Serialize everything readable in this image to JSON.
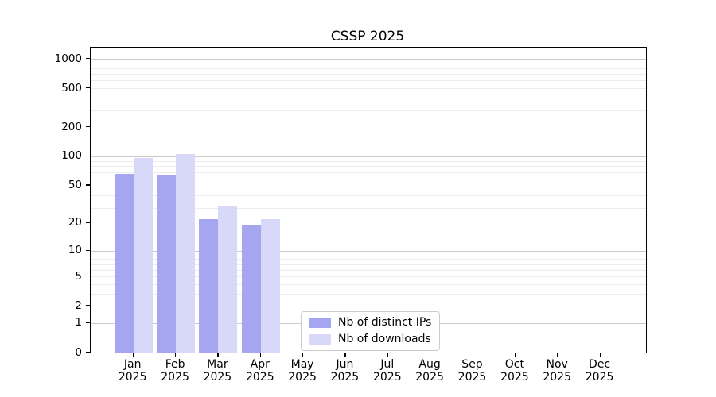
{
  "chart_data": {
    "type": "bar",
    "title": "CSSP 2025",
    "categories": [
      "Jan",
      "Feb",
      "Mar",
      "Apr",
      "May",
      "Jun",
      "Jul",
      "Aug",
      "Sep",
      "Oct",
      "Nov",
      "Dec"
    ],
    "x_year": "2025",
    "series": [
      {
        "name": "Nb of distinct IPs",
        "color": "#a5a5f0",
        "values": [
          66,
          65,
          22,
          19,
          0,
          0,
          0,
          0,
          0,
          0,
          0,
          0
        ]
      },
      {
        "name": "Nb of downloads",
        "color": "#d8d8f8",
        "values": [
          96,
          105,
          30,
          22,
          0,
          0,
          0,
          0,
          0,
          0,
          0,
          0
        ]
      }
    ],
    "y_axis": {
      "scale": "log10(1+v)",
      "min": 0,
      "max": 1000,
      "ticks": [
        0,
        1,
        2,
        5,
        10,
        20,
        50,
        100,
        200,
        500,
        1000
      ]
    },
    "legend": {
      "position": "lower-center-inside"
    },
    "grid": "horizontal, log minor + major",
    "colors": {
      "major_grid": "#c9c9c9",
      "minor_grid": "#ececec",
      "axis": "#000000",
      "background": "#ffffff"
    }
  }
}
